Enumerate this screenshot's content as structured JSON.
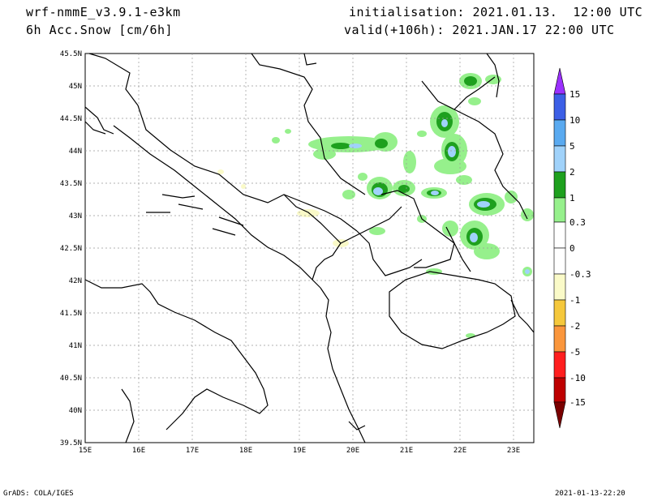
{
  "header": {
    "model": "wrf-nmmE_v3.9.1-e3km",
    "field": "6h Acc.Snow [cm/6h]",
    "init": "initialisation: 2021.01.13.  12:00 UTC",
    "valid": "valid(+106h): 2021.JAN.17 22:00 UTC"
  },
  "map": {
    "lat_labels": [
      "45.5N",
      "45N",
      "44.5N",
      "44N",
      "43.5N",
      "43N",
      "42.5N",
      "42N",
      "41.5N",
      "41N",
      "40.5N",
      "40N",
      "39.5N"
    ],
    "lon_labels": [
      "15E",
      "16E",
      "17E",
      "18E",
      "19E",
      "20E",
      "21E",
      "22E",
      "23E"
    ]
  },
  "colorbar": {
    "labels": [
      "15",
      "10",
      "5",
      "2",
      "1",
      "0.3",
      "0",
      "-0.3",
      "-1",
      "-2",
      "-5",
      "-10",
      "-15"
    ],
    "colors": [
      "#9b30ff",
      "#3c5fe6",
      "#5aaaf0",
      "#a0d2fa",
      "#1ea01e",
      "#96f08c",
      "#ffffff",
      "#ffffff",
      "#fafac8",
      "#f5c83c",
      "#fa963c",
      "#ff1e1e",
      "#be0000",
      "#7a0000"
    ]
  },
  "footer": {
    "left": "GrADS: COLA/IGES",
    "right": "2021-01-13-22:20"
  }
}
